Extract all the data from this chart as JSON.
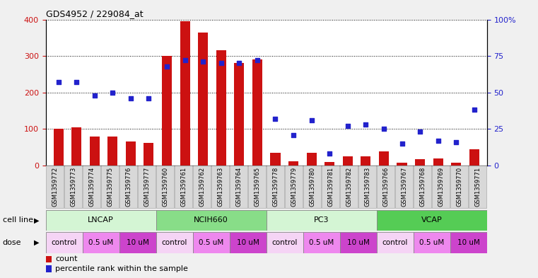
{
  "title": "GDS4952 / 229084_at",
  "samples": [
    "GSM1359772",
    "GSM1359773",
    "GSM1359774",
    "GSM1359775",
    "GSM1359776",
    "GSM1359777",
    "GSM1359760",
    "GSM1359761",
    "GSM1359762",
    "GSM1359763",
    "GSM1359764",
    "GSM1359765",
    "GSM1359778",
    "GSM1359779",
    "GSM1359780",
    "GSM1359781",
    "GSM1359782",
    "GSM1359783",
    "GSM1359766",
    "GSM1359767",
    "GSM1359768",
    "GSM1359769",
    "GSM1359770",
    "GSM1359771"
  ],
  "counts": [
    100,
    105,
    80,
    80,
    65,
    62,
    300,
    395,
    365,
    315,
    280,
    290,
    35,
    12,
    35,
    10,
    25,
    25,
    38,
    8,
    18,
    20,
    8,
    45
  ],
  "percentiles": [
    57,
    57,
    48,
    50,
    46,
    46,
    68,
    72,
    71,
    70,
    70,
    72,
    32,
    21,
    31,
    8,
    27,
    28,
    25,
    15,
    23,
    17,
    16,
    38
  ],
  "cell_lines": [
    {
      "name": "LNCAP",
      "start": 0,
      "end": 6,
      "color": "#d4f5d4"
    },
    {
      "name": "NCIH660",
      "start": 6,
      "end": 12,
      "color": "#88dd88"
    },
    {
      "name": "PC3",
      "start": 12,
      "end": 18,
      "color": "#d4f5d4"
    },
    {
      "name": "VCAP",
      "start": 18,
      "end": 24,
      "color": "#55cc55"
    }
  ],
  "doses": [
    {
      "name": "control",
      "start": 0,
      "end": 2,
      "color": "#f5d4f5"
    },
    {
      "name": "0.5 uM",
      "start": 2,
      "end": 4,
      "color": "#ee88ee"
    },
    {
      "name": "10 uM",
      "start": 4,
      "end": 6,
      "color": "#cc44cc"
    },
    {
      "name": "control",
      "start": 6,
      "end": 8,
      "color": "#f5d4f5"
    },
    {
      "name": "0.5 uM",
      "start": 8,
      "end": 10,
      "color": "#ee88ee"
    },
    {
      "name": "10 uM",
      "start": 10,
      "end": 12,
      "color": "#cc44cc"
    },
    {
      "name": "control",
      "start": 12,
      "end": 14,
      "color": "#f5d4f5"
    },
    {
      "name": "0.5 uM",
      "start": 14,
      "end": 16,
      "color": "#ee88ee"
    },
    {
      "name": "10 uM",
      "start": 16,
      "end": 18,
      "color": "#cc44cc"
    },
    {
      "name": "control",
      "start": 18,
      "end": 20,
      "color": "#f5d4f5"
    },
    {
      "name": "0.5 uM",
      "start": 20,
      "end": 22,
      "color": "#ee88ee"
    },
    {
      "name": "10 uM",
      "start": 22,
      "end": 24,
      "color": "#cc44cc"
    }
  ],
  "bar_color": "#cc1111",
  "dot_color": "#2222cc",
  "ylim_left": [
    0,
    400
  ],
  "ylim_right": [
    0,
    100
  ],
  "yticks_left": [
    0,
    100,
    200,
    300,
    400
  ],
  "yticks_right": [
    0,
    25,
    50,
    75,
    100
  ],
  "ytick_labels_right": [
    "0",
    "25",
    "50",
    "75",
    "100%"
  ],
  "bg_color": "#f0f0f0",
  "plot_bg": "#ffffff",
  "n_samples": 24
}
